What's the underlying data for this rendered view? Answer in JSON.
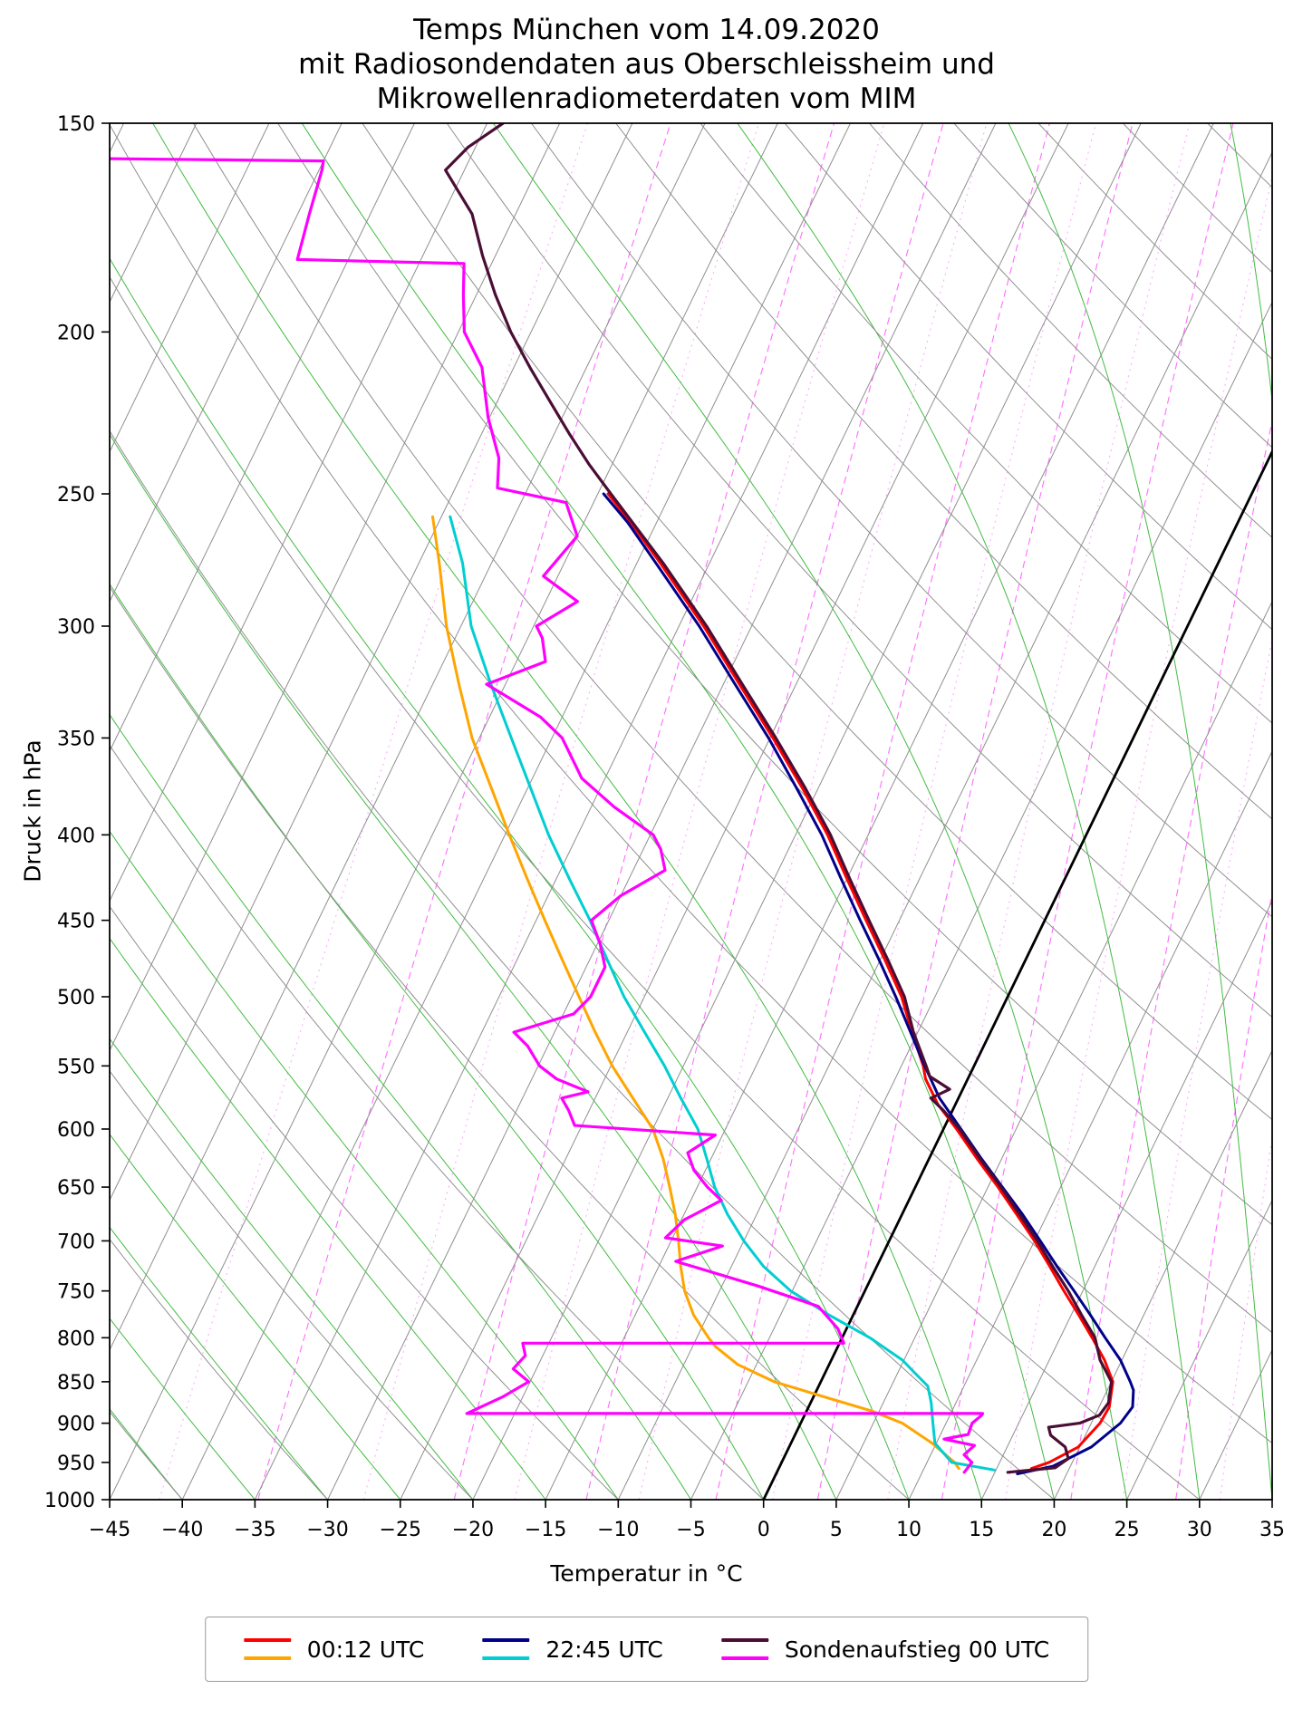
{
  "chart_data": {
    "type": "line",
    "diagram": "skew-t-log-p",
    "title_lines": [
      "Temps München vom 14.09.2020",
      "mit Radiosondendaten aus Oberschleissheim und",
      "Mikrowellenradiometerdaten vom MIM"
    ],
    "xlabel": "Temperatur in °C",
    "ylabel": "Druck in hPa",
    "x_axis": {
      "min": -45,
      "max": 35,
      "ticks": [
        -45,
        -40,
        -35,
        -30,
        -25,
        -20,
        -15,
        -10,
        -5,
        0,
        5,
        10,
        15,
        20,
        25,
        30,
        35
      ]
    },
    "y_axis": {
      "scale": "log",
      "min": 150,
      "max": 1000,
      "ticks": [
        150,
        200,
        250,
        300,
        350,
        400,
        450,
        500,
        550,
        600,
        650,
        700,
        750,
        800,
        850,
        900,
        950,
        1000
      ]
    },
    "skew_deg_per_decade": 55.8,
    "background": {
      "isotherms": {
        "min": -120,
        "max": 40,
        "step": 5,
        "color": "#8f8f8f",
        "highlight_value": 0,
        "highlight_color": "#000000"
      },
      "dry_adiabats": {
        "min": -40,
        "max": 190,
        "step": 10,
        "color": "#8f8f8f"
      },
      "moist_adiabats": {
        "min": -55,
        "max": 40,
        "step": 5,
        "color": "#2db42d"
      },
      "mixing_ratio_lines": {
        "values_gkg": [
          0.1,
          0.2,
          0.4,
          0.7,
          1,
          1.5,
          2,
          3,
          4,
          5,
          7,
          9,
          12,
          16,
          20,
          25,
          30
        ],
        "color": "#ff55ff"
      }
    },
    "series": [
      {
        "id": "t-0012utc",
        "legend_label": "00:12 UTC",
        "color": "#ff0000",
        "width": 3,
        "points": [
          [
            958,
            17.4
          ],
          [
            950,
            18.4
          ],
          [
            930,
            19.9
          ],
          [
            900,
            20.6
          ],
          [
            880,
            20.7
          ],
          [
            850,
            20.1
          ],
          [
            825,
            18.8
          ],
          [
            800,
            17.2
          ],
          [
            775,
            15.5
          ],
          [
            750,
            13.7
          ],
          [
            725,
            11.9
          ],
          [
            700,
            10.0
          ],
          [
            675,
            7.9
          ],
          [
            650,
            5.7
          ],
          [
            625,
            3.3
          ],
          [
            600,
            0.9
          ],
          [
            580,
            -1.2
          ],
          [
            560,
            -2.9
          ],
          [
            550,
            -3.5
          ],
          [
            525,
            -5.4
          ],
          [
            500,
            -7.3
          ],
          [
            475,
            -9.7
          ],
          [
            450,
            -12.3
          ],
          [
            425,
            -15.0
          ],
          [
            400,
            -17.8
          ],
          [
            375,
            -21.1
          ],
          [
            350,
            -24.8
          ],
          [
            325,
            -28.9
          ],
          [
            300,
            -33.3
          ],
          [
            275,
            -38.4
          ],
          [
            260,
            -41.8
          ],
          [
            250,
            -44.3
          ]
        ]
      },
      {
        "id": "td-0012utc",
        "legend_label": "00:12 UTC",
        "color": "#ffa500",
        "width": 3,
        "points": [
          [
            958,
            12.4
          ],
          [
            950,
            11.9
          ],
          [
            925,
            9.7
          ],
          [
            900,
            7.0
          ],
          [
            885,
            4.5
          ],
          [
            870,
            1.2
          ],
          [
            850,
            -3.2
          ],
          [
            830,
            -6.3
          ],
          [
            810,
            -8.4
          ],
          [
            800,
            -9.2
          ],
          [
            775,
            -11.0
          ],
          [
            750,
            -12.4
          ],
          [
            725,
            -13.5
          ],
          [
            700,
            -14.5
          ],
          [
            675,
            -15.6
          ],
          [
            650,
            -16.9
          ],
          [
            625,
            -18.3
          ],
          [
            600,
            -20.0
          ],
          [
            575,
            -22.4
          ],
          [
            550,
            -24.9
          ],
          [
            525,
            -27.2
          ],
          [
            500,
            -29.5
          ],
          [
            475,
            -31.9
          ],
          [
            450,
            -34.4
          ],
          [
            425,
            -37.0
          ],
          [
            400,
            -39.7
          ],
          [
            375,
            -42.5
          ],
          [
            350,
            -45.5
          ],
          [
            325,
            -48.2
          ],
          [
            300,
            -51.0
          ],
          [
            275,
            -53.6
          ],
          [
            258,
            -55.6
          ]
        ]
      },
      {
        "id": "t-2245utc",
        "legend_label": "22:45 UTC",
        "color": "#00008b",
        "width": 3,
        "points": [
          [
            965,
            16.6
          ],
          [
            955,
            18.8
          ],
          [
            930,
            20.8
          ],
          [
            900,
            22.0
          ],
          [
            880,
            22.3
          ],
          [
            860,
            21.8
          ],
          [
            850,
            21.3
          ],
          [
            825,
            19.9
          ],
          [
            800,
            18.1
          ],
          [
            775,
            16.3
          ],
          [
            750,
            14.4
          ],
          [
            725,
            12.4
          ],
          [
            700,
            10.4
          ],
          [
            675,
            8.3
          ],
          [
            650,
            6.0
          ],
          [
            625,
            3.6
          ],
          [
            600,
            1.2
          ],
          [
            575,
            -1.3
          ],
          [
            550,
            -3.4
          ],
          [
            525,
            -5.5
          ],
          [
            500,
            -7.7
          ],
          [
            475,
            -10.1
          ],
          [
            450,
            -12.7
          ],
          [
            425,
            -15.4
          ],
          [
            400,
            -18.2
          ],
          [
            375,
            -21.5
          ],
          [
            350,
            -25.1
          ],
          [
            325,
            -29.2
          ],
          [
            300,
            -33.6
          ],
          [
            275,
            -38.7
          ],
          [
            260,
            -42.0
          ],
          [
            250,
            -44.6
          ]
        ]
      },
      {
        "id": "td-2245utc",
        "legend_label": "22:45 UTC",
        "color": "#00ced1",
        "width": 3,
        "points": [
          [
            960,
            14.9
          ],
          [
            950,
            11.7
          ],
          [
            925,
            9.9
          ],
          [
            900,
            9.1
          ],
          [
            875,
            8.3
          ],
          [
            855,
            7.5
          ],
          [
            840,
            6.2
          ],
          [
            825,
            4.9
          ],
          [
            800,
            1.9
          ],
          [
            775,
            -1.7
          ],
          [
            750,
            -5.1
          ],
          [
            725,
            -7.8
          ],
          [
            700,
            -10.0
          ],
          [
            675,
            -12.0
          ],
          [
            650,
            -13.8
          ],
          [
            625,
            -15.3
          ],
          [
            600,
            -16.9
          ],
          [
            575,
            -19.1
          ],
          [
            550,
            -21.3
          ],
          [
            525,
            -23.8
          ],
          [
            500,
            -26.4
          ],
          [
            475,
            -28.8
          ],
          [
            450,
            -31.3
          ],
          [
            425,
            -34.1
          ],
          [
            400,
            -37.0
          ],
          [
            375,
            -39.8
          ],
          [
            350,
            -42.8
          ],
          [
            325,
            -46.0
          ],
          [
            300,
            -49.3
          ],
          [
            275,
            -52.0
          ],
          [
            258,
            -54.4
          ]
        ]
      },
      {
        "id": "t-sondenaufstieg",
        "legend_label": "Sondenaufstieg 00 UTC",
        "color": "#4a0e35",
        "width": 3.2,
        "points": [
          [
            963,
            15.9
          ],
          [
            957,
            19.0
          ],
          [
            945,
            19.6
          ],
          [
            930,
            19.0
          ],
          [
            915,
            17.6
          ],
          [
            905,
            17.2
          ],
          [
            900,
            19.2
          ],
          [
            890,
            20.3
          ],
          [
            875,
            20.5
          ],
          [
            850,
            20.0
          ],
          [
            825,
            18.5
          ],
          [
            800,
            17.4
          ],
          [
            775,
            15.7
          ],
          [
            750,
            14.0
          ],
          [
            725,
            12.1
          ],
          [
            700,
            10.2
          ],
          [
            675,
            8.1
          ],
          [
            650,
            5.9
          ],
          [
            625,
            3.5
          ],
          [
            600,
            1.1
          ],
          [
            585,
            -0.6
          ],
          [
            575,
            -1.9
          ],
          [
            568,
            -0.9
          ],
          [
            558,
            -2.7
          ],
          [
            550,
            -3.3
          ],
          [
            525,
            -5.3
          ],
          [
            500,
            -7.1
          ],
          [
            475,
            -9.5
          ],
          [
            450,
            -12.1
          ],
          [
            425,
            -14.8
          ],
          [
            400,
            -17.6
          ],
          [
            375,
            -20.9
          ],
          [
            350,
            -24.6
          ],
          [
            325,
            -28.7
          ],
          [
            300,
            -33.1
          ],
          [
            275,
            -38.2
          ],
          [
            250,
            -44.1
          ],
          [
            240,
            -46.6
          ],
          [
            230,
            -49.0
          ],
          [
            220,
            -51.4
          ],
          [
            210,
            -53.9
          ],
          [
            200,
            -56.4
          ],
          [
            190,
            -58.7
          ],
          [
            180,
            -60.9
          ],
          [
            170,
            -63.0
          ],
          [
            160,
            -66.3
          ],
          [
            155,
            -65.5
          ],
          [
            150,
            -63.9
          ]
        ]
      },
      {
        "id": "td-sondenaufstieg",
        "legend_label": "Sondenaufstieg 00 UTC",
        "color": "#ff00ff",
        "width": 3.2,
        "points": [
          [
            963,
            12.9
          ],
          [
            950,
            13.1
          ],
          [
            940,
            12.3
          ],
          [
            928,
            12.7
          ],
          [
            920,
            10.4
          ],
          [
            914,
            11.9
          ],
          [
            900,
            11.8
          ],
          [
            890,
            12.2
          ],
          [
            888,
            12.2
          ],
          [
            888,
            -23.3
          ],
          [
            868,
            -21.4
          ],
          [
            850,
            -20.1
          ],
          [
            835,
            -21.6
          ],
          [
            820,
            -21.2
          ],
          [
            806,
            -21.8
          ],
          [
            806,
            0.3
          ],
          [
            790,
            -0.6
          ],
          [
            766,
            -2.7
          ],
          [
            745,
            -7.5
          ],
          [
            720,
            -14.0
          ],
          [
            705,
            -11.3
          ],
          [
            697,
            -15.5
          ],
          [
            680,
            -14.8
          ],
          [
            662,
            -12.9
          ],
          [
            650,
            -14.3
          ],
          [
            635,
            -15.8
          ],
          [
            620,
            -16.8
          ],
          [
            605,
            -15.5
          ],
          [
            597,
            -25.5
          ],
          [
            585,
            -26.4
          ],
          [
            575,
            -27.3
          ],
          [
            570,
            -25.7
          ],
          [
            560,
            -28.3
          ],
          [
            550,
            -29.9
          ],
          [
            535,
            -31.4
          ],
          [
            525,
            -32.8
          ],
          [
            512,
            -29.3
          ],
          [
            500,
            -28.7
          ],
          [
            480,
            -28.7
          ],
          [
            465,
            -29.8
          ],
          [
            450,
            -31.2
          ],
          [
            435,
            -30.0
          ],
          [
            420,
            -27.8
          ],
          [
            408,
            -28.8
          ],
          [
            400,
            -29.8
          ],
          [
            385,
            -33.4
          ],
          [
            370,
            -36.6
          ],
          [
            350,
            -39.3
          ],
          [
            340,
            -41.5
          ],
          [
            325,
            -46.3
          ],
          [
            315,
            -43.0
          ],
          [
            305,
            -44.0
          ],
          [
            300,
            -44.8
          ],
          [
            290,
            -42.8
          ],
          [
            280,
            -46.0
          ],
          [
            265,
            -45.0
          ],
          [
            253,
            -46.9
          ],
          [
            248,
            -52.1
          ],
          [
            238,
            -53.0
          ],
          [
            225,
            -55.1
          ],
          [
            210,
            -57.2
          ],
          [
            200,
            -59.6
          ],
          [
            190,
            -60.9
          ],
          [
            182,
            -61.9
          ],
          [
            181,
            -73.5
          ],
          [
            170,
            -74.2
          ],
          [
            160,
            -74.8
          ],
          [
            158,
            -75.0
          ],
          [
            157.5,
            -90.0
          ]
        ]
      }
    ],
    "legend": {
      "entries": [
        {
          "label": "00:12 UTC",
          "colors": [
            "#ff0000",
            "#ffa500"
          ]
        },
        {
          "label": "22:45 UTC",
          "colors": [
            "#00008b",
            "#00ced1"
          ]
        },
        {
          "label": "Sondenaufstieg 00 UTC",
          "colors": [
            "#4a0e35",
            "#ff00ff"
          ]
        }
      ]
    }
  }
}
